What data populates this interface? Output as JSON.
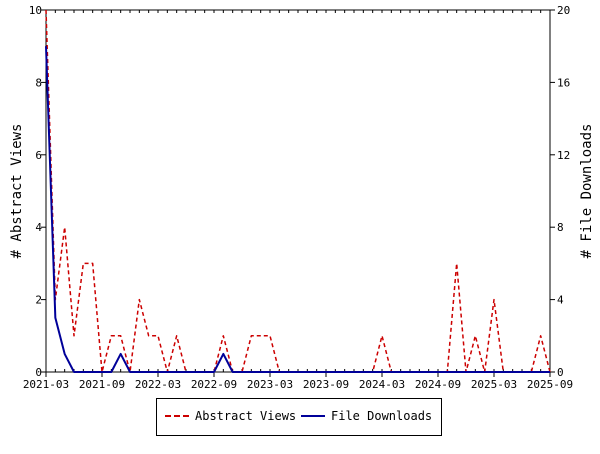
{
  "chart_data": {
    "type": "line",
    "x": [
      "2021-03",
      "2021-04",
      "2021-05",
      "2021-06",
      "2021-07",
      "2021-08",
      "2021-09",
      "2021-10",
      "2021-11",
      "2021-12",
      "2022-01",
      "2022-02",
      "2022-03",
      "2022-04",
      "2022-05",
      "2022-06",
      "2022-07",
      "2022-08",
      "2022-09",
      "2022-10",
      "2022-11",
      "2022-12",
      "2023-01",
      "2023-02",
      "2023-03",
      "2023-04",
      "2023-05",
      "2023-06",
      "2023-07",
      "2023-08",
      "2023-09",
      "2023-10",
      "2023-11",
      "2023-12",
      "2024-01",
      "2024-02",
      "2024-03",
      "2024-04",
      "2024-05",
      "2024-06",
      "2024-07",
      "2024-08",
      "2024-09",
      "2024-10",
      "2024-11",
      "2024-12",
      "2025-01",
      "2025-02",
      "2025-03",
      "2025-04",
      "2025-05",
      "2025-06",
      "2025-07",
      "2025-08",
      "2025-09"
    ],
    "x_ticks": [
      "2021-03",
      "2021-09",
      "2022-03",
      "2022-09",
      "2023-03",
      "2023-09",
      "2024-03",
      "2024-09",
      "2025-03",
      "2025-09"
    ],
    "series": [
      {
        "name": "Abstract Views",
        "axis": "left",
        "color": "#cc0000",
        "dash": "dashed",
        "values": [
          10,
          2,
          4,
          1,
          3,
          3,
          0,
          1,
          1,
          0,
          2,
          1,
          1,
          0,
          1,
          0,
          0,
          0,
          0,
          1,
          0,
          0,
          1,
          1,
          1,
          0,
          0,
          0,
          0,
          0,
          0,
          0,
          0,
          0,
          0,
          0,
          1,
          0,
          0,
          0,
          0,
          0,
          0,
          0,
          3,
          0,
          1,
          0,
          2,
          0,
          0,
          0,
          0,
          1,
          0
        ]
      },
      {
        "name": "File Downloads",
        "axis": "right",
        "color": "#000099",
        "dash": "solid",
        "values": [
          18,
          3,
          1,
          0,
          0,
          0,
          0,
          0,
          1,
          0,
          0,
          0,
          0,
          0,
          0,
          0,
          0,
          0,
          0,
          1,
          0,
          0,
          0,
          0,
          0,
          0,
          0,
          0,
          0,
          0,
          0,
          0,
          0,
          0,
          0,
          0,
          0,
          0,
          0,
          0,
          0,
          0,
          0,
          0,
          0,
          0,
          0,
          0,
          0,
          0,
          0,
          0,
          0,
          0,
          0
        ]
      }
    ],
    "ylabel": "# Abstract Views",
    "y2label": "# File Downloads",
    "ylim": [
      0,
      10
    ],
    "y2lim": [
      0,
      20
    ],
    "yticks": [
      0,
      2,
      4,
      6,
      8,
      10
    ],
    "y2ticks": [
      0,
      4,
      8,
      12,
      16,
      20
    ],
    "grid": false,
    "legend_position": "bottom"
  }
}
